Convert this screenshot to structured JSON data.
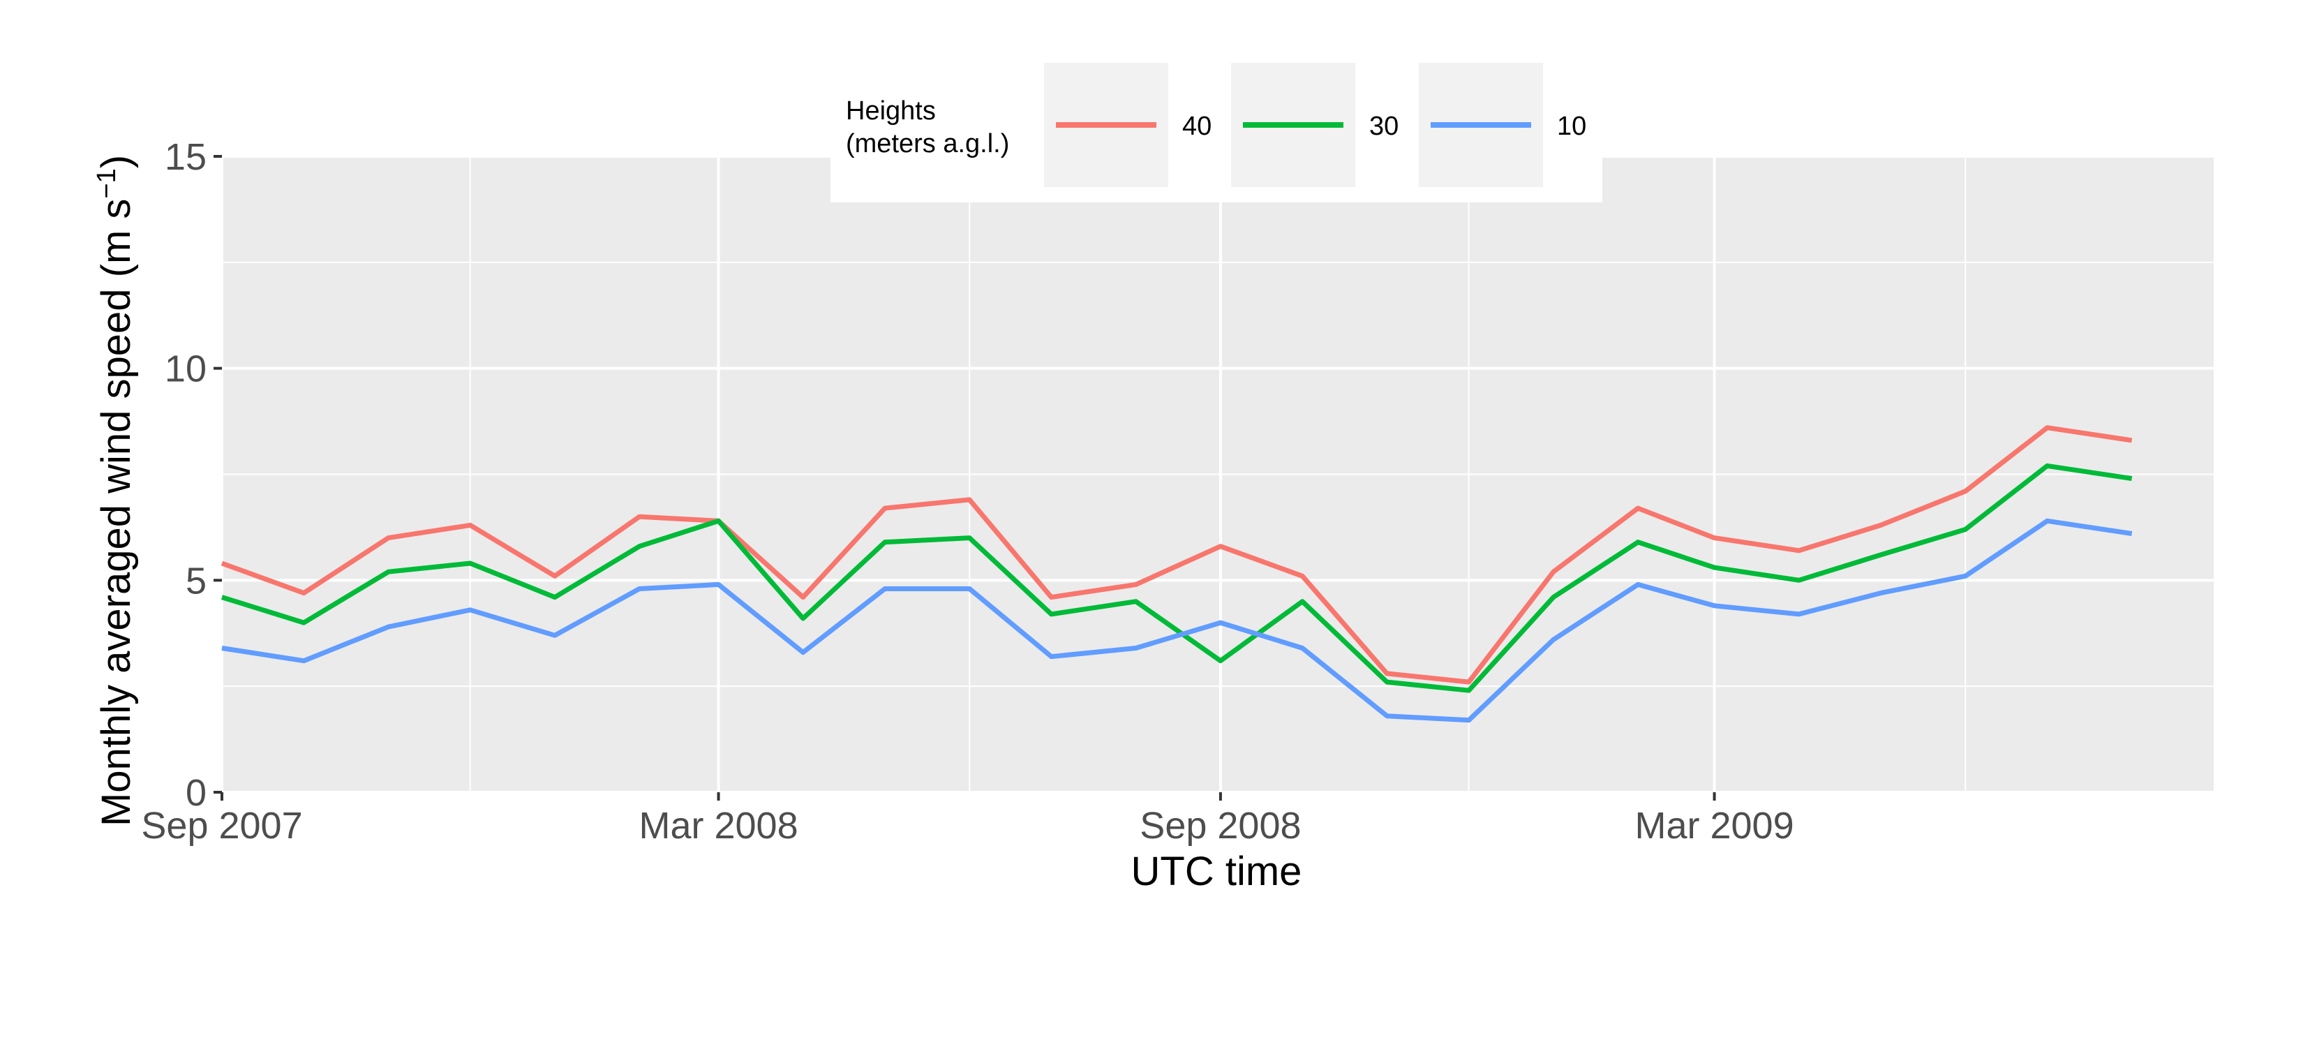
{
  "chart_data": {
    "type": "line",
    "title": "",
    "xlabel": "UTC time",
    "ylabel": "Monthly averaged wind speed (m s",
    "ylabel_superscript": "−1",
    "ylabel_close": ")",
    "ylim": [
      0,
      15
    ],
    "yticks": [
      "0",
      "5",
      "10",
      "15"
    ],
    "xlim": [
      "2007-09-01",
      "2009-08-31"
    ],
    "xticks": [
      {
        "date": "2007-09-01",
        "label": "Sep 2007"
      },
      {
        "date": "2008-03-01",
        "label": "Mar 2008"
      },
      {
        "date": "2008-09-01",
        "label": "Sep 2008"
      },
      {
        "date": "2009-03-01",
        "label": "Mar 2009"
      }
    ],
    "x_minor_gridlines": [
      "2007-12-01",
      "2008-06-01",
      "2008-12-01",
      "2009-06-01"
    ],
    "grid": true,
    "legend": {
      "placement": "top",
      "title_line1": "Heights",
      "title_line2": "(meters a.g.l.)"
    },
    "x": [
      "2007-09-01",
      "2007-10-01",
      "2007-11-01",
      "2007-12-01",
      "2008-01-01",
      "2008-02-01",
      "2008-03-01",
      "2008-04-01",
      "2008-05-01",
      "2008-06-01",
      "2008-07-01",
      "2008-08-01",
      "2008-09-01",
      "2008-10-01",
      "2008-11-01",
      "2008-12-01",
      "2009-01-01",
      "2009-02-01",
      "2009-03-01",
      "2009-04-01",
      "2009-05-01",
      "2009-06-01",
      "2009-07-01",
      "2009-08-01"
    ],
    "series": [
      {
        "name": "40",
        "color": "#F8766D",
        "values": [
          5.4,
          4.7,
          6.0,
          6.3,
          5.1,
          6.5,
          6.4,
          4.6,
          6.7,
          6.9,
          4.6,
          4.9,
          5.8,
          5.1,
          2.8,
          2.6,
          5.2,
          6.7,
          6.0,
          5.7,
          6.3,
          7.1,
          8.6,
          8.3
        ]
      },
      {
        "name": "30",
        "color": "#00BA38",
        "values": [
          4.6,
          4.0,
          5.2,
          5.4,
          4.6,
          5.8,
          6.4,
          4.1,
          5.9,
          6.0,
          4.2,
          4.5,
          3.1,
          4.5,
          2.6,
          2.4,
          4.6,
          5.9,
          5.3,
          5.0,
          5.6,
          6.2,
          7.7,
          7.4
        ]
      },
      {
        "name": "10",
        "color": "#619CFF",
        "values": [
          3.4,
          3.1,
          3.9,
          4.3,
          3.7,
          4.8,
          4.9,
          3.3,
          4.8,
          4.8,
          3.2,
          3.4,
          4.0,
          3.4,
          1.8,
          1.7,
          3.6,
          4.9,
          4.4,
          4.2,
          4.7,
          5.1,
          6.4,
          6.1
        ]
      }
    ],
    "colors": {
      "panel_background": "#EBEBEB",
      "grid_major": "#FFFFFF",
      "legend_key_background": "#F2F2F2"
    }
  }
}
